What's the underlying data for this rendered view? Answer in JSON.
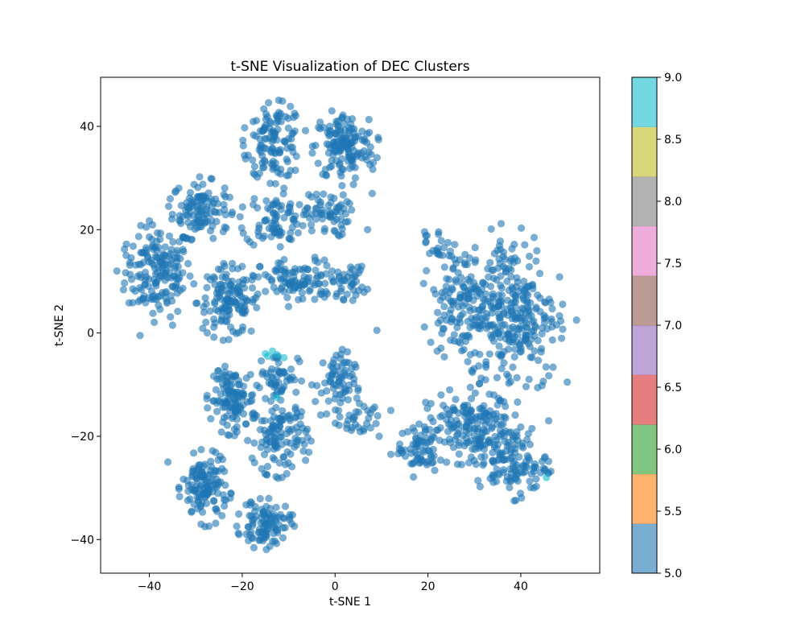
{
  "chart_data": {
    "type": "scatter",
    "title": "t-SNE Visualization of DEC Clusters",
    "xlabel": "t-SNE 1",
    "ylabel": "t-SNE 2",
    "xlim": [
      -50.5,
      57
    ],
    "ylim": [
      -46.5,
      49.5
    ],
    "x_ticks": [
      -40,
      -20,
      0,
      20,
      40
    ],
    "y_ticks": [
      -40,
      -20,
      0,
      20,
      40
    ],
    "grid": false,
    "point_alpha": 0.6,
    "default_cluster": 5,
    "colorbar": {
      "range": [
        5.0,
        9.0
      ],
      "ticks": [
        "5.0",
        "5.5",
        "6.0",
        "6.5",
        "7.0",
        "7.5",
        "8.0",
        "8.5",
        "9.0"
      ],
      "colors": [
        "#1f77b4",
        "#ff7f0e",
        "#2ca02c",
        "#d62728",
        "#9467bd",
        "#8c564b",
        "#e377c2",
        "#7f7f7f",
        "#bcbd22",
        "#17becf"
      ]
    },
    "groups": [
      {
        "cluster": 5,
        "cx": -38,
        "cy": 12,
        "rx": 6.5,
        "ry": 8,
        "n": 170
      },
      {
        "cluster": 5,
        "cx": -29,
        "cy": 24,
        "rx": 5.5,
        "ry": 5,
        "n": 110
      },
      {
        "cluster": 5,
        "cx": -23,
        "cy": 6,
        "rx": 6,
        "ry": 6,
        "n": 130
      },
      {
        "cluster": 5,
        "cx": -13,
        "cy": 37,
        "rx": 5.5,
        "ry": 6.5,
        "n": 120
      },
      {
        "cluster": 5,
        "cx": 2,
        "cy": 36,
        "rx": 6,
        "ry": 6,
        "n": 150
      },
      {
        "cluster": 5,
        "cx": -13,
        "cy": 22,
        "rx": 6,
        "ry": 5,
        "n": 80
      },
      {
        "cluster": 5,
        "cx": -2,
        "cy": 23,
        "rx": 4.5,
        "ry": 4,
        "n": 60
      },
      {
        "cluster": 5,
        "cx": -8,
        "cy": 10,
        "rx": 8,
        "ry": 4,
        "n": 100
      },
      {
        "cluster": 5,
        "cx": 3,
        "cy": 10,
        "rx": 3.5,
        "ry": 3,
        "n": 40
      },
      {
        "cluster": 5,
        "cx": -22,
        "cy": -13,
        "rx": 4.5,
        "ry": 5.5,
        "n": 120
      },
      {
        "cluster": 5,
        "cx": -12,
        "cy": -20,
        "rx": 5.5,
        "ry": 6.5,
        "n": 120
      },
      {
        "cluster": 5,
        "cx": -28,
        "cy": -30,
        "rx": 4.5,
        "ry": 6,
        "n": 130
      },
      {
        "cluster": 5,
        "cx": -15,
        "cy": -37,
        "rx": 5,
        "ry": 4,
        "n": 100
      },
      {
        "cluster": 5,
        "cx": -12,
        "cy": -8,
        "rx": 4,
        "ry": 4,
        "n": 50
      },
      {
        "cluster": 5,
        "cx": 0,
        "cy": -10,
        "rx": 4,
        "ry": 6,
        "n": 70
      },
      {
        "cluster": 5,
        "cx": 5,
        "cy": -17,
        "rx": 4,
        "ry": 3,
        "n": 30
      },
      {
        "cluster": 5,
        "cx": 38,
        "cy": 4,
        "rx": 9,
        "ry": 14,
        "n": 310
      },
      {
        "cluster": 5,
        "cx": 26,
        "cy": 6,
        "rx": 6,
        "ry": 9,
        "n": 110
      },
      {
        "cluster": 5,
        "cx": 38,
        "cy": -25,
        "rx": 7,
        "ry": 6,
        "n": 130
      },
      {
        "cluster": 5,
        "cx": 28,
        "cy": -18,
        "rx": 9,
        "ry": 6,
        "n": 160
      },
      {
        "cluster": 5,
        "cx": 18,
        "cy": -23,
        "rx": 4,
        "ry": 4,
        "n": 60
      },
      {
        "cluster": 5,
        "cx": 22,
        "cy": 17,
        "rx": 3,
        "ry": 3,
        "n": 20
      }
    ],
    "extra_points": [
      {
        "x": -15,
        "y": -4,
        "cluster": 9
      },
      {
        "x": -14.5,
        "y": -4.5,
        "cluster": 9
      },
      {
        "x": -13.5,
        "y": -3.5,
        "cluster": 9
      },
      {
        "x": -12.5,
        "y": -4.2,
        "cluster": 9
      },
      {
        "x": -11,
        "y": -4.8,
        "cluster": 9
      },
      {
        "x": -12.5,
        "y": -12.5,
        "cluster": 9
      },
      {
        "x": 45.5,
        "y": -28,
        "cluster": 9
      },
      {
        "x": -47,
        "y": 12,
        "cluster": 5
      },
      {
        "x": -45,
        "y": 15,
        "cluster": 5
      },
      {
        "x": -42,
        "y": -0.5,
        "cluster": 5
      },
      {
        "x": -36,
        "y": -25,
        "cluster": 5
      },
      {
        "x": -35,
        "y": 1.5,
        "cluster": 5
      },
      {
        "x": 9,
        "y": 0.5,
        "cluster": 5
      },
      {
        "x": 9.5,
        "y": -20,
        "cluster": 5
      },
      {
        "x": 12,
        "y": -15,
        "cluster": 5
      },
      {
        "x": 52,
        "y": 2.5,
        "cluster": 5
      },
      {
        "x": 50,
        "y": -9.5,
        "cluster": 5
      },
      {
        "x": 7,
        "y": 20,
        "cluster": 5
      },
      {
        "x": 8,
        "y": 27,
        "cluster": 5
      },
      {
        "x": 12,
        "y": -23.5,
        "cluster": 5
      },
      {
        "x": 46,
        "y": -17,
        "cluster": 5
      }
    ]
  }
}
